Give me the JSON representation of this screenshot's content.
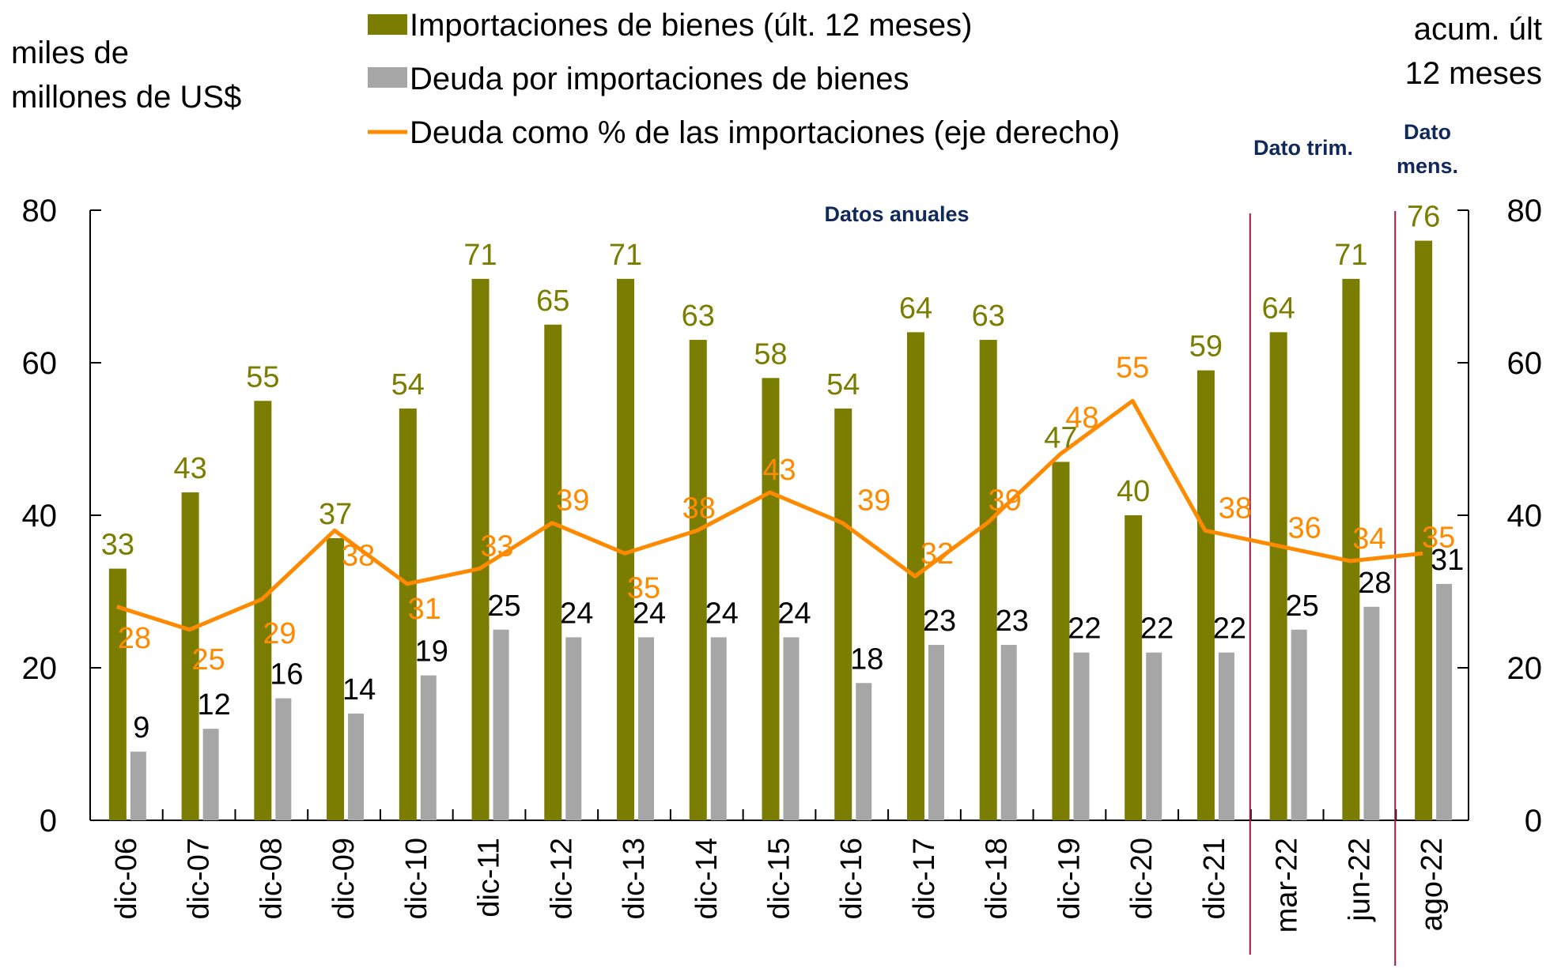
{
  "chart_data": {
    "type": "bar",
    "title": "",
    "ylabel_left": "miles de millones de US$",
    "ylabel_left_lines": [
      "miles de",
      "millones de US$"
    ],
    "ylabel_right_lines": [
      "acum. últ",
      "12 meses"
    ],
    "ylim_left": [
      0,
      80
    ],
    "ylim_right": [
      0,
      80
    ],
    "yticks_left": [
      0,
      20,
      40,
      60,
      80
    ],
    "yticks_right": [
      0,
      20,
      40,
      60,
      80
    ],
    "grid": false,
    "legend_position": "top-center",
    "categories": [
      "dic-06",
      "dic-07",
      "dic-08",
      "dic-09",
      "dic-10",
      "dic-11",
      "dic-12",
      "dic-13",
      "dic-14",
      "dic-15",
      "dic-16",
      "dic-17",
      "dic-18",
      "dic-19",
      "dic-20",
      "dic-21",
      "mar-22",
      "jun-22",
      "ago-22"
    ],
    "series": [
      {
        "name": "Importaciones de bienes (últ. 12 meses)",
        "type": "bar",
        "axis": "left",
        "color": "#7a7d00",
        "label_color": "#7a7d00",
        "values": [
          33,
          43,
          55,
          37,
          54,
          71,
          65,
          71,
          63,
          58,
          54,
          64,
          63,
          47,
          40,
          59,
          64,
          71,
          76
        ]
      },
      {
        "name": "Deuda por importaciones de bienes",
        "type": "bar",
        "axis": "left",
        "color": "#a6a6a6",
        "label_color": "#000000",
        "values": [
          9,
          12,
          16,
          14,
          19,
          25,
          24,
          24,
          24,
          24,
          18,
          23,
          23,
          22,
          22,
          22,
          25,
          28,
          31
        ]
      },
      {
        "name": "Deuda como % de las importaciones (eje derecho)",
        "type": "line",
        "axis": "right",
        "color": "#ff8a00",
        "label_color": "#ff8a00",
        "values": [
          28,
          25,
          29,
          38,
          31,
          33,
          39,
          35,
          38,
          43,
          39,
          32,
          39,
          48,
          55,
          38,
          36,
          34,
          35
        ]
      }
    ],
    "annotations": [
      {
        "text": "Datos anuales",
        "region": "dic-06 to dic-21"
      },
      {
        "text": "Dato trim.",
        "region": "mar-22 to jun-22"
      },
      {
        "text": "Dato mens.",
        "lines": [
          "Dato",
          "mens."
        ],
        "region": "ago-22"
      }
    ],
    "separators_after_category": [
      "dic-21",
      "jun-22"
    ],
    "separator_color": "#a0193c"
  }
}
